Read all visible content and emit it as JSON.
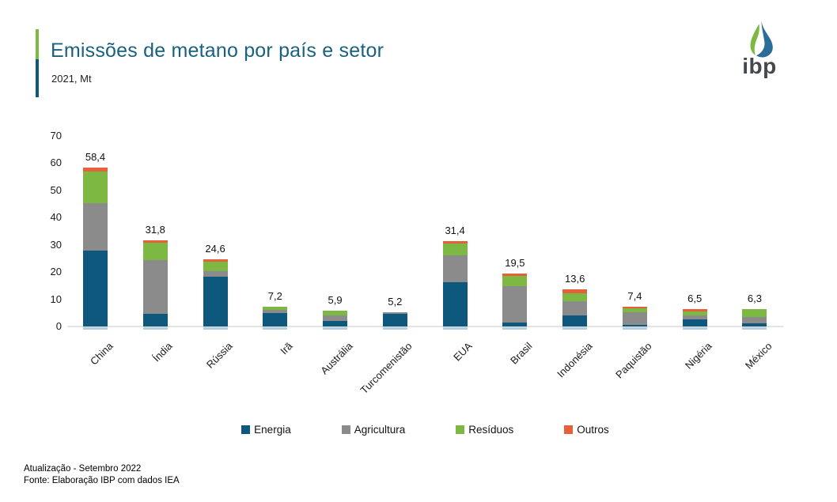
{
  "header": {
    "title": "Emissões de metano por país e setor",
    "subtitle": "2021, Mt",
    "logo_text": "ibp"
  },
  "chart_data": {
    "type": "bar",
    "stacked": true,
    "title": "Emissões de metano por país e setor",
    "subtitle": "2021, Mt",
    "unit": "Mt",
    "grid": false,
    "legend_position": "bottom",
    "ylim": [
      0,
      70
    ],
    "y_ticks": [
      70,
      60,
      50,
      40,
      30,
      20,
      10,
      0
    ],
    "categories": [
      "China",
      "Índia",
      "Rússia",
      "Irã",
      "Austrália",
      "Turcomenistão",
      "EUA",
      "Brasil",
      "Indonésia",
      "Paquistão",
      "Nigéria",
      "México"
    ],
    "series": [
      {
        "name": "Energia",
        "color": "#0d587c",
        "values": [
          28.0,
          4.7,
          18.2,
          5.0,
          2.1,
          4.7,
          16.4,
          1.4,
          4.0,
          0.5,
          2.6,
          1.3
        ]
      },
      {
        "name": "Agricultura",
        "color": "#8b8b8b",
        "values": [
          17.2,
          19.8,
          2.2,
          1.0,
          2.1,
          0.5,
          9.8,
          13.4,
          5.2,
          4.8,
          1.4,
          2.3
        ]
      },
      {
        "name": "Resíduos",
        "color": "#7db843",
        "values": [
          11.7,
          6.2,
          3.5,
          1.2,
          1.7,
          0.0,
          4.2,
          3.7,
          3.0,
          1.4,
          1.6,
          2.7
        ]
      },
      {
        "name": "Outros",
        "color": "#e6603a",
        "values": [
          1.5,
          1.1,
          0.7,
          0.0,
          0.0,
          0.0,
          1.0,
          1.0,
          1.4,
          0.7,
          0.9,
          0.0
        ]
      }
    ],
    "totals": [
      58.4,
      31.8,
      24.6,
      7.2,
      5.9,
      5.2,
      31.4,
      19.5,
      13.6,
      7.4,
      6.5,
      6.3
    ],
    "totals_display": [
      "58,4",
      "31,8",
      "24,6",
      "7,2",
      "5,9",
      "5,2",
      "31,4",
      "19,5",
      "13,6",
      "7,4",
      "6,5",
      "6,3"
    ]
  },
  "footer": {
    "line1": "Atualização - Setembro 2022",
    "line2": "Fonte: Elaboração IBP com dados IEA"
  }
}
